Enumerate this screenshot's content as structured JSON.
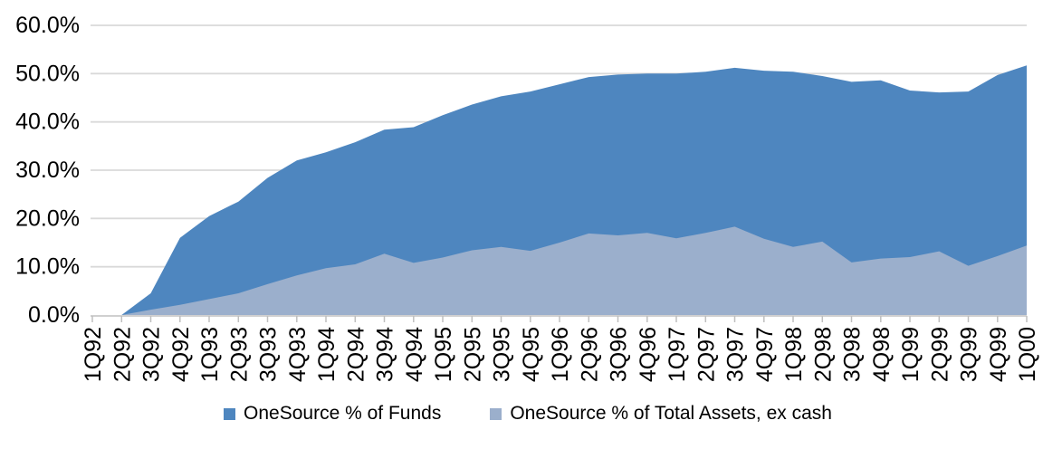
{
  "chart_data": {
    "type": "area",
    "overlay": true,
    "title": "",
    "xlabel": "",
    "ylabel": "",
    "categories": [
      "1Q92",
      "2Q92",
      "3Q92",
      "4Q92",
      "1Q93",
      "2Q93",
      "3Q93",
      "4Q93",
      "1Q94",
      "2Q94",
      "3Q94",
      "4Q94",
      "1Q95",
      "2Q95",
      "3Q95",
      "4Q95",
      "1Q96",
      "2Q96",
      "3Q96",
      "4Q96",
      "1Q97",
      "2Q97",
      "3Q97",
      "4Q97",
      "1Q98",
      "2Q98",
      "3Q98",
      "4Q98",
      "1Q99",
      "2Q99",
      "3Q99",
      "4Q99",
      "1Q00"
    ],
    "series": [
      {
        "name": "OneSource % of Funds",
        "color": "#4E86BF",
        "values": [
          0.0,
          0.0,
          4.5,
          16.0,
          20.5,
          23.5,
          28.4,
          32.0,
          33.7,
          35.8,
          38.4,
          38.9,
          41.4,
          43.6,
          45.3,
          46.3,
          47.8,
          49.3,
          49.8,
          50.0,
          50.0,
          50.4,
          51.2,
          50.6,
          50.4,
          49.5,
          48.3,
          48.6,
          46.5,
          46.1,
          46.3,
          49.7,
          51.7
        ]
      },
      {
        "name": "OneSource % of Total Assets, ex cash",
        "color": "#9BAFCC",
        "values": [
          0.0,
          0.0,
          1.1,
          2.1,
          3.3,
          4.5,
          6.4,
          8.2,
          9.7,
          10.5,
          12.7,
          10.8,
          11.9,
          13.4,
          14.1,
          13.3,
          15.0,
          16.9,
          16.5,
          17.0,
          15.9,
          17.0,
          18.3,
          15.8,
          14.1,
          15.2,
          10.9,
          11.7,
          12.0,
          13.2,
          10.2,
          12.2,
          14.4
        ]
      }
    ],
    "ylim": [
      0,
      60
    ],
    "ytick_step": 10,
    "ytick_decimals": 1,
    "ytick_suffix": "%",
    "ytick_labels": [
      "0.0%",
      "10.0%",
      "20.0%",
      "30.0%",
      "40.0%",
      "50.0%",
      "60.0%"
    ],
    "grid": "horizontal",
    "legend_position": "bottom-center",
    "axis_colors": {
      "gridline": "#D9D9D9",
      "axis_line": "#C9C9C9",
      "tick": "#BFBFBF",
      "label": "#000000"
    }
  }
}
